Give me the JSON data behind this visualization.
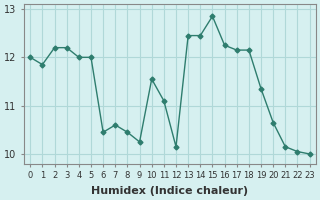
{
  "x": [
    0,
    1,
    2,
    3,
    4,
    5,
    6,
    7,
    8,
    9,
    10,
    11,
    12,
    13,
    14,
    15,
    16,
    17,
    18,
    19,
    20,
    21,
    22,
    23
  ],
  "y": [
    12.0,
    11.85,
    12.2,
    12.2,
    12.0,
    12.0,
    10.45,
    10.6,
    10.45,
    10.25,
    11.55,
    11.1,
    10.15,
    12.45,
    12.45,
    12.85,
    12.25,
    12.15,
    12.15,
    11.35,
    10.65,
    10.15,
    10.05,
    10.0
  ],
  "line_color": "#2e7d6e",
  "bg_color": "#d6f0f0",
  "grid_color": "#b0d8d8",
  "xlabel": "Humidex (Indice chaleur)",
  "ylim": [
    9.8,
    13.1
  ],
  "xlim": [
    -0.5,
    23.5
  ],
  "yticks": [
    10,
    11,
    12,
    13
  ],
  "xtick_labels": [
    "0",
    "1",
    "2",
    "3",
    "4",
    "5",
    "6",
    "7",
    "8",
    "9",
    "10",
    "11",
    "12",
    "13",
    "14",
    "15",
    "16",
    "17",
    "18",
    "19",
    "20",
    "21",
    "22",
    "23"
  ],
  "label_fontsize": 8,
  "tick_fontsize": 7
}
